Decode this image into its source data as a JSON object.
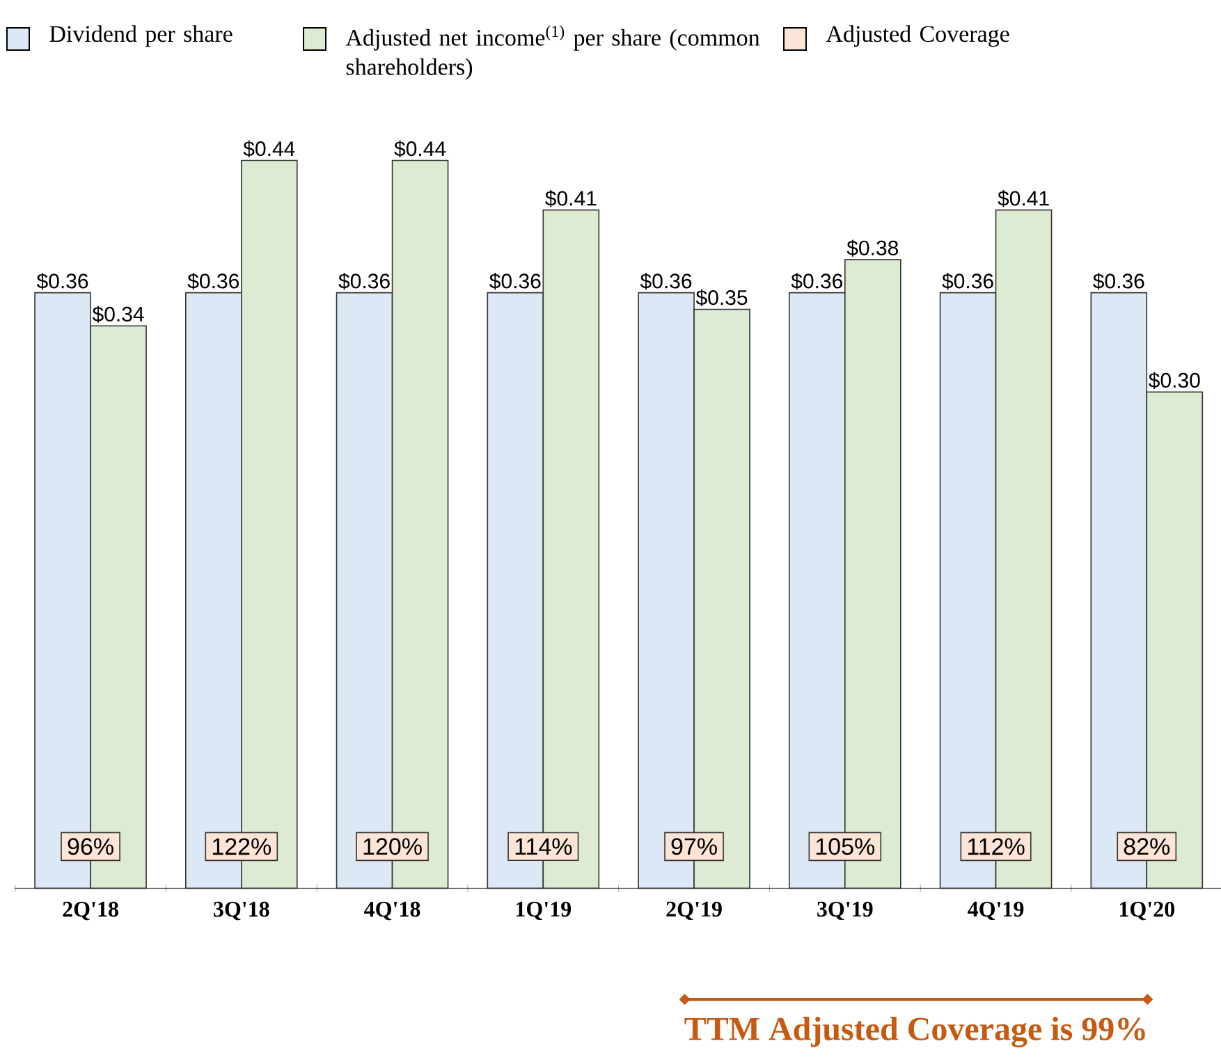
{
  "chart_data": {
    "type": "bar",
    "categories": [
      "2Q'18",
      "3Q'18",
      "4Q'18",
      "1Q'19",
      "2Q'19",
      "3Q'19",
      "4Q'19",
      "1Q'20"
    ],
    "series": [
      {
        "name": "Dividend per share",
        "color": "#dce8f5",
        "values": [
          0.36,
          0.36,
          0.36,
          0.36,
          0.36,
          0.36,
          0.36,
          0.36
        ],
        "value_labels": [
          "$0.36",
          "$0.36",
          "$0.36",
          "$0.36",
          "$0.36",
          "$0.36",
          "$0.36",
          "$0.36"
        ]
      },
      {
        "name": "Adjusted net income$^{(1)}$ per share (common shareholders)",
        "color": "#dcebd2",
        "values": [
          0.34,
          0.44,
          0.44,
          0.41,
          0.35,
          0.38,
          0.41,
          0.3
        ],
        "value_labels": [
          "$0.34",
          "$0.44",
          "$0.44",
          "$0.41",
          "$0.35",
          "$0.38",
          "$0.41",
          "$0.30"
        ]
      },
      {
        "name": "Adjusted Coverage",
        "type": "other",
        "color": "#fce4d6",
        "values": [
          null,
          null,
          null,
          null,
          null,
          null,
          null,
          null
        ],
        "value_labels": [
          "96%",
          "122%",
          "120%",
          "114%",
          "97%",
          "105%",
          "112%",
          "82%"
        ]
      }
    ],
    "legend": "top",
    "annotations": [
      "TTM Adjusted Coverage is 99%"
    ]
  }
}
